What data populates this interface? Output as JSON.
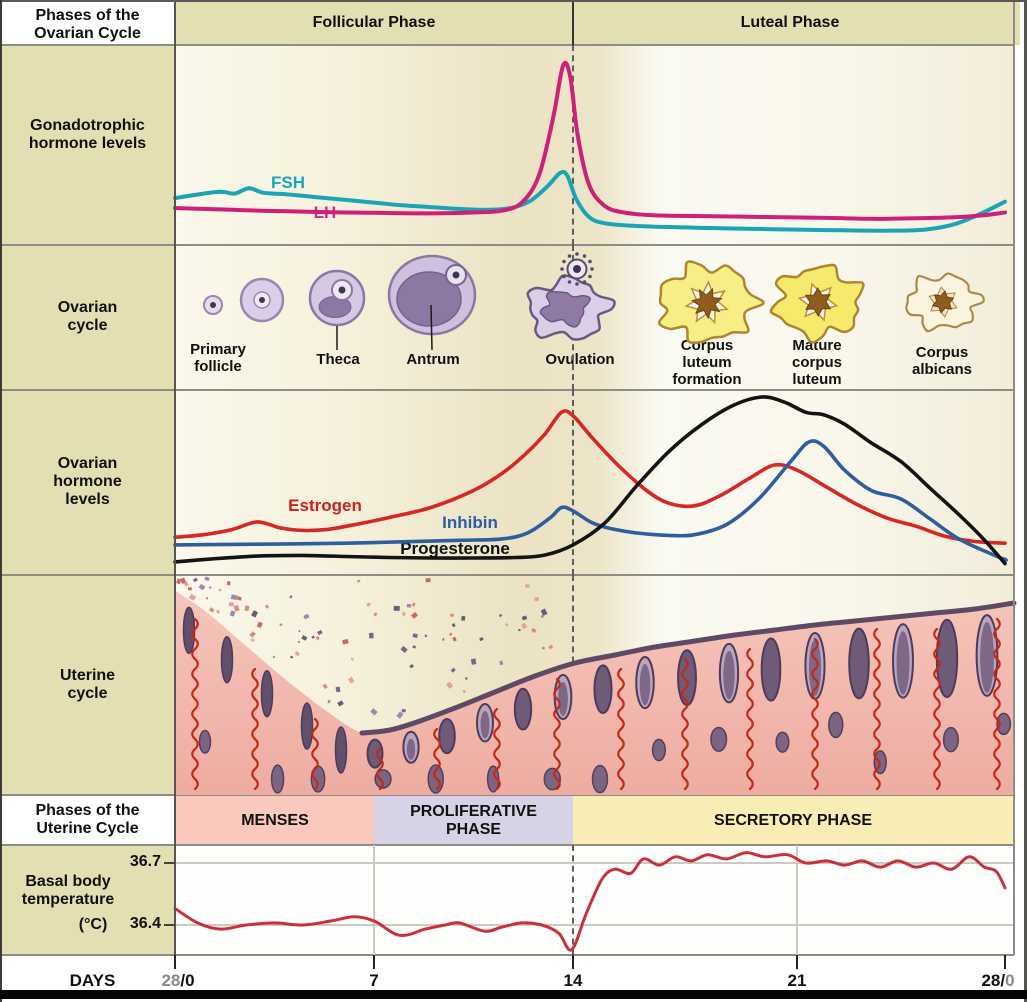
{
  "header": {
    "ovarian_cell": "Phases of the Ovarian Cycle",
    "follicular": "Follicular Phase",
    "luteal": "Luteal Phase"
  },
  "sidebar": {
    "gonadotrophic": "Gonadotrophic hormone levels",
    "ovarian_cycle": "Ovarian cycle",
    "ovarian_hormones": "Ovarian hormone levels",
    "uterine_cycle": "Uterine cycle",
    "uterine_phases_cell": "Phases of the Uterine Cycle",
    "temperature_label": "Basal body temperature",
    "temperature_unit": "(°C)"
  },
  "curve_labels": {
    "fsh": "FSH",
    "lh": "LH",
    "estrogen": "Estrogen",
    "inhibin": "Inhibin",
    "progesterone": "Progesterone"
  },
  "follicle_labels": {
    "primary": "Primary follicle",
    "theca": "Theca",
    "antrum": "Antrum",
    "ovulation": "Ovulation",
    "cl_formation": "Corpus luteum formation",
    "mature_cl": "Mature corpus luteum",
    "albicans": "Corpus albicans"
  },
  "uterine_phases": {
    "menses": {
      "label": "MENSES",
      "days": [
        0,
        7
      ]
    },
    "proliferative": {
      "label": "PROLIFERATIVE PHASE",
      "days": [
        7,
        14
      ]
    },
    "secretory": {
      "label": "SECRETORY PHASE",
      "days": [
        14,
        28
      ]
    }
  },
  "ovarian_phases": {
    "follicular": {
      "label": "Follicular Phase",
      "days": [
        0,
        14
      ]
    },
    "luteal": {
      "label": "Luteal Phase",
      "days": [
        14,
        28
      ]
    }
  },
  "temperature_axis": {
    "high": "36.7",
    "low": "36.4"
  },
  "days_axis": {
    "label": "DAYS",
    "start_gray": "28",
    "start_black": "/0",
    "d7": "7",
    "d14": "14",
    "d21": "21",
    "end_black": "28/",
    "end_gray": "0"
  },
  "colors": {
    "khaki": "#e4dfb2",
    "white_cell": "#ffffff",
    "menses_bg": "#f8c9bc",
    "proliferative_bg": "#d8d2e6",
    "secretory_bg": "#f9edb6",
    "fsh": "#1ba3b6",
    "lh": "#cf2079",
    "fsh_label": "#18a6bc",
    "lh_label": "#d02a84",
    "estrogen": "#d62724",
    "inhibin": "#2d5f9e",
    "progesterone": "#141414",
    "estrogen_label": "#cf1f1f",
    "inhibin_label": "#2b5ca8",
    "progesterone_label": "#101010",
    "temperature": "#c9303c",
    "gray_day": "#8a8a8a"
  },
  "chart_data": [
    {
      "id": "gonadotrophic_hormones",
      "type": "line",
      "title": "Gonadotrophic hormone levels",
      "x_unit": "day of cycle",
      "x_range": [
        0,
        28
      ],
      "y_unit": "relative hormone level (0-100, unlabeled axis)",
      "grid": false,
      "legend": "inline labels",
      "series": [
        {
          "name": "FSH",
          "color": "#1ba3b6",
          "points": [
            [
              0,
              20.5
            ],
            [
              0.8,
              22.5
            ],
            [
              1.6,
              24
            ],
            [
              2.1,
              23
            ],
            [
              2.6,
              26
            ],
            [
              3.1,
              23.5
            ],
            [
              4,
              22.5
            ],
            [
              5,
              21
            ],
            [
              6,
              19.5
            ],
            [
              7,
              18
            ],
            [
              8,
              16.5
            ],
            [
              9,
              15.5
            ],
            [
              10,
              14.5
            ],
            [
              11,
              14
            ],
            [
              11.8,
              15
            ],
            [
              12.5,
              19
            ],
            [
              13.1,
              27
            ],
            [
              13.55,
              34.5
            ],
            [
              13.8,
              33
            ],
            [
              14.1,
              20
            ],
            [
              14.5,
              10
            ],
            [
              15,
              6.5
            ],
            [
              16,
              5
            ],
            [
              17.5,
              4.2
            ],
            [
              19,
              3.6
            ],
            [
              21,
              3
            ],
            [
              22.5,
              2.6
            ],
            [
              24,
              2.4
            ],
            [
              25.3,
              3
            ],
            [
              26.3,
              6
            ],
            [
              27.2,
              12
            ],
            [
              28,
              18.5
            ]
          ]
        },
        {
          "name": "LH",
          "color": "#cf2079",
          "points": [
            [
              0,
              15
            ],
            [
              1,
              14.5
            ],
            [
              2,
              14
            ],
            [
              3,
              13.5
            ],
            [
              4.5,
              13
            ],
            [
              6,
              12.5
            ],
            [
              7.5,
              12.2
            ],
            [
              9,
              12
            ],
            [
              10.5,
              12.5
            ],
            [
              11.5,
              13.5
            ],
            [
              12.2,
              18
            ],
            [
              12.8,
              33
            ],
            [
              13.3,
              65
            ],
            [
              13.65,
              94
            ],
            [
              13.9,
              88
            ],
            [
              14.15,
              55
            ],
            [
              14.5,
              28
            ],
            [
              15,
              16
            ],
            [
              15.6,
              12.5
            ],
            [
              16.5,
              11
            ],
            [
              18,
              10.5
            ],
            [
              20,
              10
            ],
            [
              22,
              9.5
            ],
            [
              23.5,
              9
            ],
            [
              25,
              9.3
            ],
            [
              26.5,
              10
            ],
            [
              27.3,
              11
            ],
            [
              28,
              12.5
            ]
          ]
        }
      ]
    },
    {
      "id": "ovarian_hormones",
      "type": "line",
      "title": "Ovarian hormone levels",
      "x_unit": "day of cycle",
      "x_range": [
        0,
        28
      ],
      "y_unit": "relative hormone level (0-100, unlabeled axis)",
      "grid": false,
      "legend": "inline labels",
      "series": [
        {
          "name": "Estrogen",
          "color": "#d62724",
          "points": [
            [
              0,
              17.5
            ],
            [
              1,
              19
            ],
            [
              2,
              22
            ],
            [
              2.9,
              26.5
            ],
            [
              3.7,
              23
            ],
            [
              4.5,
              21.5
            ],
            [
              5.3,
              22
            ],
            [
              6.2,
              24.5
            ],
            [
              7.5,
              29
            ],
            [
              9,
              35
            ],
            [
              10.5,
              45
            ],
            [
              11.5,
              55
            ],
            [
              12.3,
              66
            ],
            [
              13,
              78
            ],
            [
              13.6,
              91
            ],
            [
              14,
              89
            ],
            [
              14.6,
              76
            ],
            [
              15.4,
              60
            ],
            [
              16.3,
              45
            ],
            [
              17,
              37.5
            ],
            [
              17.8,
              36
            ],
            [
              18.6,
              42
            ],
            [
              19.5,
              52
            ],
            [
              20.3,
              60
            ],
            [
              21,
              57
            ],
            [
              22,
              47
            ],
            [
              23,
              37
            ],
            [
              24,
              29
            ],
            [
              25,
              24
            ],
            [
              26,
              18
            ],
            [
              27,
              15
            ],
            [
              28,
              14
            ]
          ]
        },
        {
          "name": "Inhibin",
          "color": "#2d5f9e",
          "points": [
            [
              0,
              13
            ],
            [
              2,
              13.3
            ],
            [
              4,
              13.6
            ],
            [
              6,
              14
            ],
            [
              8,
              14.8
            ],
            [
              10,
              15.7
            ],
            [
              11.5,
              16.5
            ],
            [
              12.4,
              20
            ],
            [
              13.2,
              29
            ],
            [
              13.6,
              35
            ],
            [
              14,
              33
            ],
            [
              14.6,
              26
            ],
            [
              15.2,
              22.5
            ],
            [
              16,
              20
            ],
            [
              17,
              18.6
            ],
            [
              17.8,
              19
            ],
            [
              18.8,
              25
            ],
            [
              19.8,
              40
            ],
            [
              20.8,
              62
            ],
            [
              21.4,
              73.5
            ],
            [
              21.9,
              71
            ],
            [
              22.6,
              57
            ],
            [
              23.5,
              45
            ],
            [
              24.5,
              40
            ],
            [
              25.5,
              28
            ],
            [
              26.5,
              16
            ],
            [
              27.9,
              5
            ],
            [
              28,
              4.5
            ]
          ]
        },
        {
          "name": "Progesterone",
          "color": "#141414",
          "points": [
            [
              0,
              3
            ],
            [
              1.5,
              5
            ],
            [
              3,
              6.5
            ],
            [
              4.5,
              6.8
            ],
            [
              6,
              6.2
            ],
            [
              7.5,
              5.6
            ],
            [
              9,
              5.3
            ],
            [
              10.5,
              5.3
            ],
            [
              12,
              5.6
            ],
            [
              13,
              7
            ],
            [
              14,
              13
            ],
            [
              15,
              26
            ],
            [
              16,
              48
            ],
            [
              17,
              68
            ],
            [
              18,
              83.5
            ],
            [
              19,
              95
            ],
            [
              19.9,
              100
            ],
            [
              20.6,
              97
            ],
            [
              21.3,
              91
            ],
            [
              21.9,
              89.5
            ],
            [
              22.6,
              84
            ],
            [
              23.5,
              73
            ],
            [
              24.5,
              62
            ],
            [
              25.5,
              46
            ],
            [
              26.5,
              30
            ],
            [
              27.3,
              16
            ],
            [
              28,
              2
            ]
          ]
        }
      ]
    },
    {
      "id": "basal_body_temperature",
      "type": "line",
      "title": "Basal body temperature (°C)",
      "x_unit": "day of cycle",
      "x_range": [
        0,
        28
      ],
      "ylabel": "°C",
      "y_ticks": [
        36.4,
        36.7
      ],
      "ylim": [
        36.25,
        36.82
      ],
      "x_tick_labels": [
        "28/0",
        "7",
        "14",
        "21",
        "28/0"
      ],
      "x_tick_days": [
        0,
        7,
        14,
        21,
        28
      ],
      "grid": true,
      "series": [
        {
          "name": "Basal body temperature",
          "color": "#c9303c",
          "points": [
            [
              0,
              36.48
            ],
            [
              0.8,
              36.41
            ],
            [
              1.6,
              36.38
            ],
            [
              2.5,
              36.4
            ],
            [
              3.5,
              36.41
            ],
            [
              4.5,
              36.4
            ],
            [
              5.5,
              36.42
            ],
            [
              6.3,
              36.44
            ],
            [
              7,
              36.42
            ],
            [
              7.9,
              36.35
            ],
            [
              8.8,
              36.38
            ],
            [
              9.5,
              36.4
            ],
            [
              10,
              36.41
            ],
            [
              10.9,
              36.37
            ],
            [
              11.5,
              36.39
            ],
            [
              12.2,
              36.41
            ],
            [
              12.9,
              36.4
            ],
            [
              13.5,
              36.36
            ],
            [
              13.95,
              36.28
            ],
            [
              14.4,
              36.45
            ],
            [
              14.9,
              36.62
            ],
            [
              15.3,
              36.67
            ],
            [
              15.8,
              36.65
            ],
            [
              16.2,
              36.72
            ],
            [
              16.7,
              36.69
            ],
            [
              17.2,
              36.73
            ],
            [
              17.7,
              36.71
            ],
            [
              18.2,
              36.74
            ],
            [
              18.8,
              36.72
            ],
            [
              19.4,
              36.75
            ],
            [
              20,
              36.73
            ],
            [
              20.7,
              36.74
            ],
            [
              21.3,
              36.7
            ],
            [
              22,
              36.71
            ],
            [
              22.6,
              36.69
            ],
            [
              23.2,
              36.71
            ],
            [
              23.8,
              36.68
            ],
            [
              24.4,
              36.71
            ],
            [
              25,
              36.68
            ],
            [
              25.6,
              36.7
            ],
            [
              26.2,
              36.67
            ],
            [
              26.8,
              36.73
            ],
            [
              27.3,
              36.68
            ],
            [
              27.7,
              36.66
            ],
            [
              28,
              36.58
            ]
          ]
        }
      ]
    }
  ]
}
